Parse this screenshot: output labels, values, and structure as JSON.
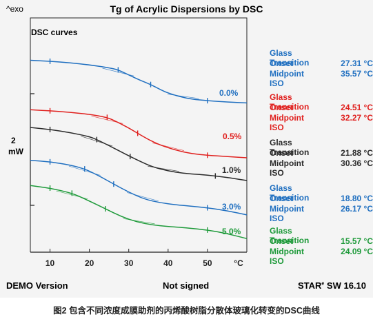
{
  "header": {
    "left_label": "^exo",
    "title": "Tg of Acrylic Dispersions by DSC"
  },
  "panel_label": "DSC curves",
  "scale_bar": {
    "value": "2",
    "unit": "mW"
  },
  "footer": {
    "left": "DEMO Version",
    "center": "Not signed",
    "right_brand": "STAR",
    "right_mark": "e",
    "right_version": "SW 16.10"
  },
  "caption": "图2  包含不同浓度成膜助剂的丙烯酸树脂分散体玻璃化转变的DSC曲线",
  "annotations": [
    {
      "title": "Glass Transition",
      "onset_label": "Onset",
      "onset_value": "27.31 °C",
      "mid_label": "Midpoint ISO",
      "mid_value": "35.57 °C",
      "color": "#1f6fc0"
    },
    {
      "title": "Glass Transition",
      "onset_label": "Onset",
      "onset_value": "24.51 °C",
      "mid_label": "Midpoint ISO",
      "mid_value": "32.27 °C",
      "color": "#e0201e"
    },
    {
      "title": "Glass Transition",
      "onset_label": "Onset",
      "onset_value": "21.88 °C",
      "mid_label": "Midpoint ISO",
      "mid_value": "30.36 °C",
      "color": "#2a2a2a"
    },
    {
      "title": "Glass Transition",
      "onset_label": "Onset",
      "onset_value": "18.80 °C",
      "mid_label": "Midpoint ISO",
      "mid_value": "26.17 °C",
      "color": "#1f6fc0"
    },
    {
      "title": "Glass Transition",
      "onset_label": "Onset",
      "onset_value": "15.57 °C",
      "mid_label": "Midpoint ISO",
      "mid_value": "24.09 °C",
      "color": "#1e9a3a"
    }
  ],
  "chart_data": {
    "type": "line",
    "title": "Tg of Acrylic Dispersions by DSC",
    "xlabel": "°C",
    "ylabel": "^exo",
    "xlim": [
      5,
      60
    ],
    "xticks": [
      10,
      20,
      30,
      40,
      50
    ],
    "xunit": "°C",
    "grid": false,
    "legend": "none",
    "series": [
      {
        "name": "0.0%",
        "color": "#1f6fc0",
        "x": [
          5,
          10,
          15,
          20,
          25,
          27.31,
          30,
          33,
          35.57,
          38,
          40,
          43,
          46,
          50,
          55,
          60
        ],
        "y": [
          0.76,
          0.72,
          0.66,
          0.58,
          0.46,
          0.38,
          0.18,
          -0.04,
          -0.2,
          -0.4,
          -0.54,
          -0.68,
          -0.78,
          -0.84,
          -0.89,
          -0.93
        ],
        "markers": {
          "onset": 27.31,
          "midpoint": 35.57
        }
      },
      {
        "name": "0.5%",
        "color": "#e0201e",
        "x": [
          5,
          10,
          15,
          20,
          24.51,
          27,
          30,
          32.27,
          35,
          38,
          42,
          46,
          50,
          55,
          60
        ],
        "y": [
          -1.2,
          -1.24,
          -1.3,
          -1.38,
          -1.5,
          -1.68,
          -1.92,
          -2.13,
          -2.38,
          -2.6,
          -2.8,
          -2.94,
          -3.0,
          -3.05,
          -3.1
        ],
        "markers": {
          "onset": 24.51,
          "midpoint": 32.27
        }
      },
      {
        "name": "1.0%",
        "color": "#2a2a2a",
        "x": [
          5,
          10,
          15,
          20,
          21.88,
          25,
          28,
          30.36,
          33,
          36,
          40,
          44,
          48,
          52,
          56,
          60
        ],
        "y": [
          -1.9,
          -1.98,
          -2.1,
          -2.26,
          -2.38,
          -2.62,
          -2.86,
          -3.05,
          -3.25,
          -3.46,
          -3.62,
          -3.72,
          -3.76,
          -3.82,
          -3.9,
          -4.0
        ],
        "markers": {
          "onset": 21.88,
          "midpoint": 30.36
        }
      },
      {
        "name": "3.0%",
        "color": "#1f6fc0",
        "x": [
          5,
          10,
          15,
          18.8,
          22,
          26.17,
          30,
          34,
          38,
          42,
          46,
          50,
          55,
          60
        ],
        "y": [
          -3.2,
          -3.26,
          -3.38,
          -3.54,
          -3.78,
          -4.14,
          -4.46,
          -4.74,
          -4.88,
          -4.96,
          -5.02,
          -5.08,
          -5.2,
          -5.36
        ],
        "markers": {
          "onset": 18.8,
          "midpoint": 26.17
        }
      },
      {
        "name": "5.0%",
        "color": "#1e9a3a",
        "x": [
          5,
          10,
          15.57,
          19,
          24.09,
          28,
          32,
          36,
          40,
          45,
          50,
          55,
          60
        ],
        "y": [
          -4.2,
          -4.3,
          -4.5,
          -4.74,
          -5.12,
          -5.42,
          -5.64,
          -5.76,
          -5.82,
          -5.88,
          -5.96,
          -6.1,
          -6.3
        ],
        "markers": {
          "onset": 15.57,
          "midpoint": 24.09
        }
      }
    ]
  }
}
